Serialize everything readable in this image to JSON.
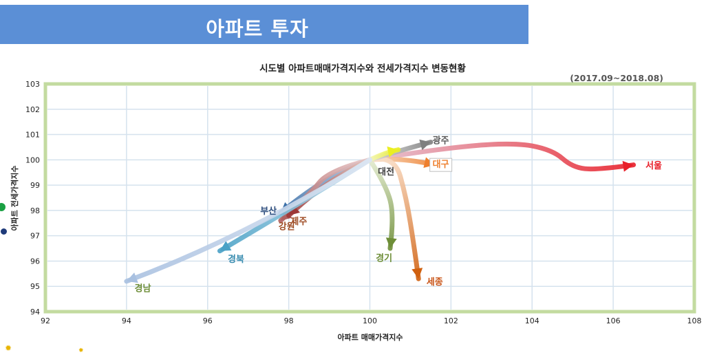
{
  "banner": {
    "title": "아파트 투자"
  },
  "colors": {
    "banner": "#5b8fd6",
    "frame": "#c3dba0",
    "grid": "#d5e2ee",
    "seoul": "#e8202a",
    "daegu": "#ee7f2d",
    "sejong": "#d0600f",
    "gyeonggi": "#6e8e38",
    "gangwon": "#9e4a22",
    "gyeongbuk": "#3a8db0",
    "gyeongnam": "#7a9c48",
    "gwangju": "#7f7f7f",
    "daejeon": "#333333"
  },
  "chart_data": {
    "type": "line",
    "title": "시도별 아파트매매가격지수와 전세가격지수 변동현황",
    "subtitle": "(2017.09~2018.08)",
    "xlabel": "아파트 매매가격지수",
    "ylabel": "아파트 전세가격지수",
    "xlim": [
      92,
      108
    ],
    "ylim": [
      94,
      103
    ],
    "xticks": [
      92,
      94,
      96,
      98,
      100,
      102,
      104,
      106,
      108
    ],
    "yticks": [
      94,
      95,
      96,
      97,
      98,
      99,
      100,
      101,
      102,
      103
    ],
    "grid": true,
    "series": [
      {
        "name": "서울",
        "color": "#e8202a",
        "label_color": "#e8202a",
        "start_color": "#e3bfcf",
        "x": [
          100.0,
          101.5,
          103.5,
          104.5,
          105.0,
          105.6,
          106.5
        ],
        "y": [
          100.0,
          100.4,
          100.7,
          100.4,
          99.7,
          99.6,
          99.8
        ],
        "label_at": [
          107.0,
          99.75
        ]
      },
      {
        "name": "대구",
        "color": "#ee7f2d",
        "label_color": "#ee7f2d",
        "start_color": "#f8dfc8",
        "x": [
          100.0,
          100.8,
          101.6
        ],
        "y": [
          100.0,
          100.1,
          99.8
        ],
        "label_at": [
          101.75,
          99.8
        ]
      },
      {
        "name": "세종",
        "color": "#d0600f",
        "label_color": "#c9561a",
        "start_color": "#fbe2cd",
        "x": [
          100.0,
          100.6,
          100.9,
          101.1,
          101.2
        ],
        "y": [
          100.0,
          100.2,
          98.5,
          96.5,
          95.3
        ],
        "label_at": [
          101.6,
          95.15
        ]
      },
      {
        "name": "경기",
        "color": "#6e8e38",
        "label_color": "#6e8e38",
        "start_color": "#e3ebcf",
        "x": [
          100.0,
          100.4,
          100.6,
          100.5
        ],
        "y": [
          100.0,
          99.0,
          97.8,
          96.5
        ],
        "label_at": [
          100.35,
          96.1
        ]
      },
      {
        "name": "광주",
        "color": "#7f7f7f",
        "label_color": "#595959",
        "start_color": "#dcdcdc",
        "x": [
          100.0,
          100.8,
          101.5
        ],
        "y": [
          100.0,
          100.4,
          100.7
        ],
        "label_at": [
          101.75,
          100.75
        ]
      },
      {
        "name": "대전",
        "color": "#ebef21",
        "label_color": "#3f3f3f",
        "start_color": "#f5f8b8",
        "x": [
          100.0,
          100.4,
          100.7
        ],
        "y": [
          100.0,
          100.3,
          100.4
        ],
        "label_at": [
          100.4,
          99.5
        ]
      },
      {
        "name": "부산",
        "color": "#3b6fa8",
        "label_color": "#2f4f7f",
        "start_color": "#b8c9e0",
        "x": [
          100.0,
          99.0,
          97.8
        ],
        "y": [
          100.0,
          99.5,
          97.9
        ],
        "label_at": [
          97.5,
          97.95
        ]
      },
      {
        "name": "강원",
        "color": "#b06060",
        "label_color": "#9e4a22",
        "start_color": "#e9c9c9",
        "x": [
          100.0,
          99.0,
          98.5,
          97.8
        ],
        "y": [
          100.0,
          99.6,
          98.6,
          97.6
        ],
        "label_at": [
          97.95,
          97.35
        ]
      },
      {
        "name": "제주",
        "color": "#9c3838",
        "label_color": "#9e4a22",
        "start_color": "#e6c7c0",
        "x": [
          100.0,
          99.0,
          98.0
        ],
        "y": [
          100.0,
          99.3,
          97.8
        ],
        "label_at": [
          98.25,
          97.55
        ]
      },
      {
        "name": "경북",
        "color": "#4aa1c6",
        "label_color": "#3a8db0",
        "start_color": "#c8e2ee",
        "x": [
          100.0,
          98.0,
          96.3
        ],
        "y": [
          100.0,
          98.0,
          96.4
        ],
        "label_at": [
          96.7,
          96.05
        ]
      },
      {
        "name": "경남",
        "color": "#a8c0e0",
        "label_color": "#6e8e38",
        "start_color": "#dde6f3",
        "x": [
          100.0,
          97.0,
          94.0
        ],
        "y": [
          100.0,
          97.0,
          95.2
        ],
        "label_at": [
          94.4,
          94.9
        ]
      }
    ]
  }
}
